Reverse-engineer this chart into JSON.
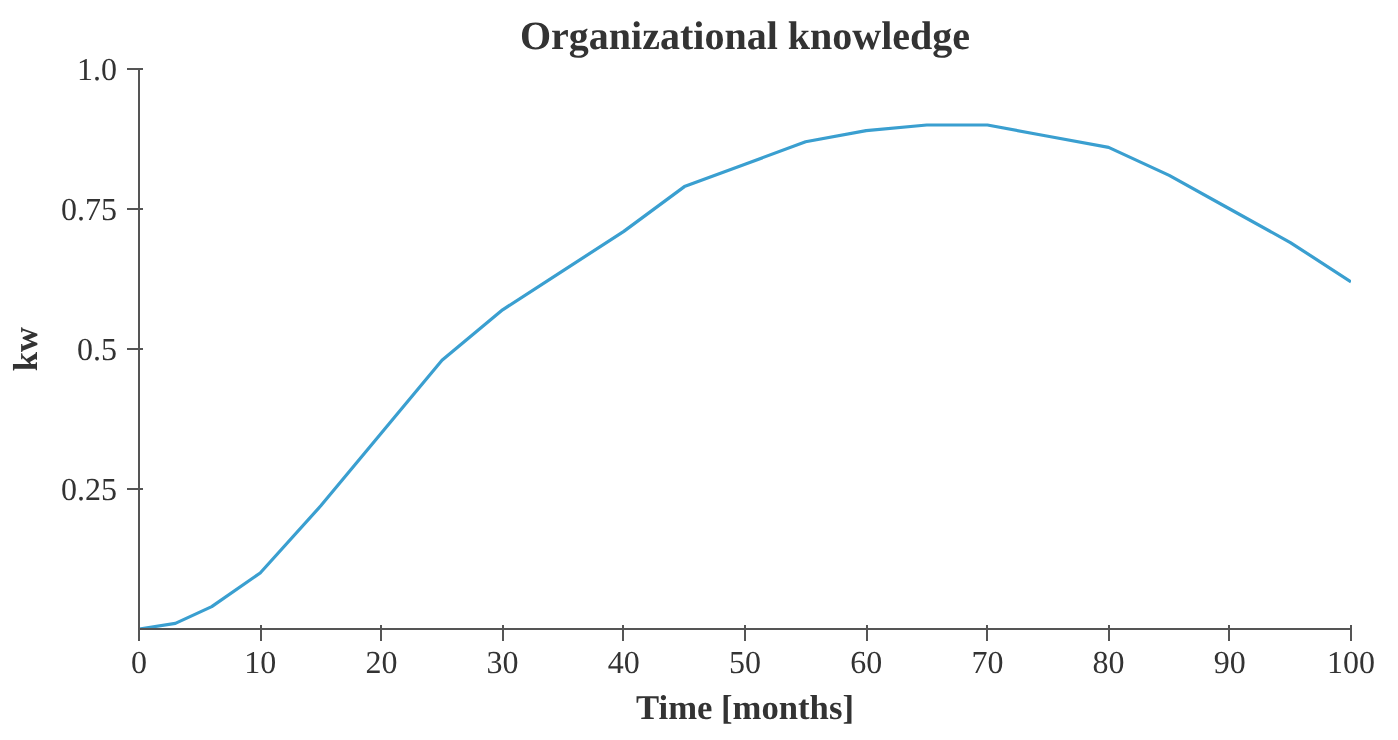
{
  "chart_data": {
    "type": "line",
    "title": "Organizational knowledge",
    "xlabel": "Time [months]",
    "ylabel": "kw",
    "x": [
      0,
      3,
      6,
      10,
      15,
      20,
      25,
      30,
      35,
      40,
      45,
      50,
      55,
      60,
      65,
      70,
      75,
      80,
      85,
      90,
      95,
      100
    ],
    "series": [
      {
        "color": "#3a9fd0",
        "values": [
          0,
          0.01,
          0.04,
          0.1,
          0.22,
          0.35,
          0.48,
          0.57,
          0.64,
          0.71,
          0.79,
          0.83,
          0.87,
          0.89,
          0.9,
          0.9,
          0.88,
          0.86,
          0.81,
          0.75,
          0.69,
          0.62
        ]
      }
    ],
    "xlim": [
      0,
      100
    ],
    "ylim": [
      0,
      1
    ],
    "xticks": [
      0,
      10,
      20,
      30,
      40,
      50,
      60,
      70,
      80,
      90,
      100
    ],
    "yticks": [
      {
        "value": 0.25,
        "label": "0.25"
      },
      {
        "value": 0.5,
        "label": "0.5"
      },
      {
        "value": 0.75,
        "label": "0.75"
      },
      {
        "value": 1,
        "label": "1.0"
      }
    ],
    "grid": false,
    "marker": "none",
    "line_style": "solid"
  }
}
